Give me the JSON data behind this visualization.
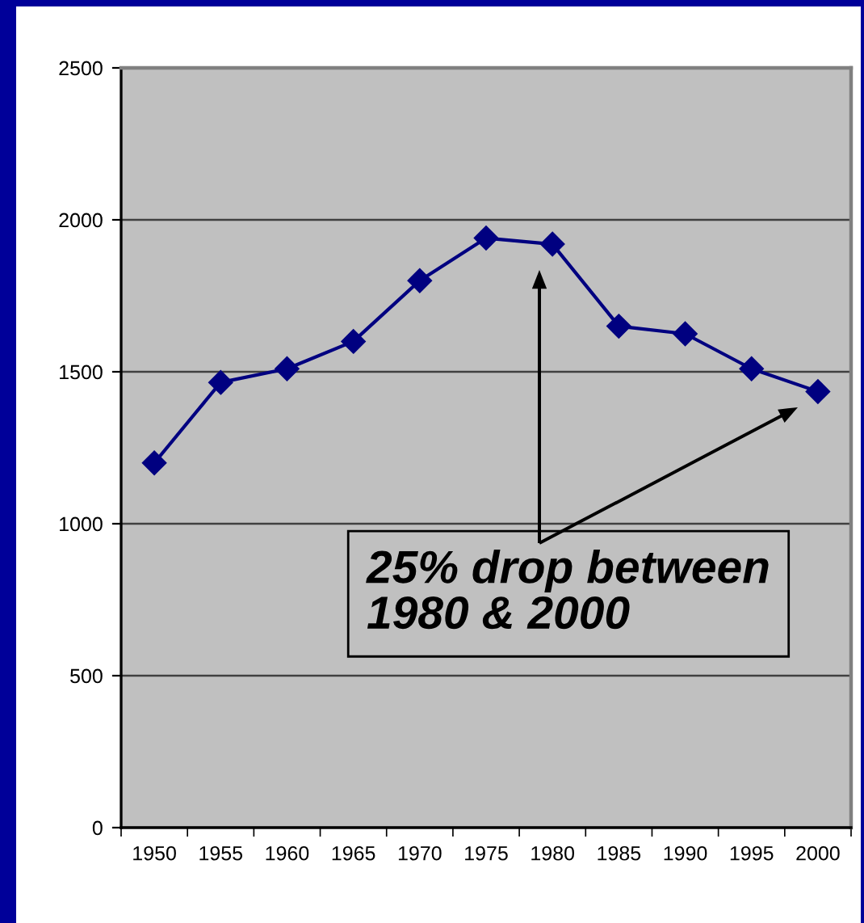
{
  "chart_data": {
    "type": "line",
    "categories": [
      "1950",
      "1955",
      "1960",
      "1965",
      "1970",
      "1975",
      "1980",
      "1985",
      "1990",
      "1995",
      "2000"
    ],
    "series": [
      {
        "color": "#000080",
        "values": [
          1200,
          1465,
          1510,
          1600,
          1800,
          1940,
          1920,
          1650,
          1625,
          1510,
          1435
        ]
      }
    ],
    "ylim": [
      0,
      2500
    ],
    "yticks": [
      0,
      500,
      1000,
      1500,
      2000,
      2500
    ],
    "grid": "y",
    "marker": "diamond",
    "line_style": "solid",
    "annotations": [
      "25% drop between\n1980 & 2000"
    ]
  }
}
